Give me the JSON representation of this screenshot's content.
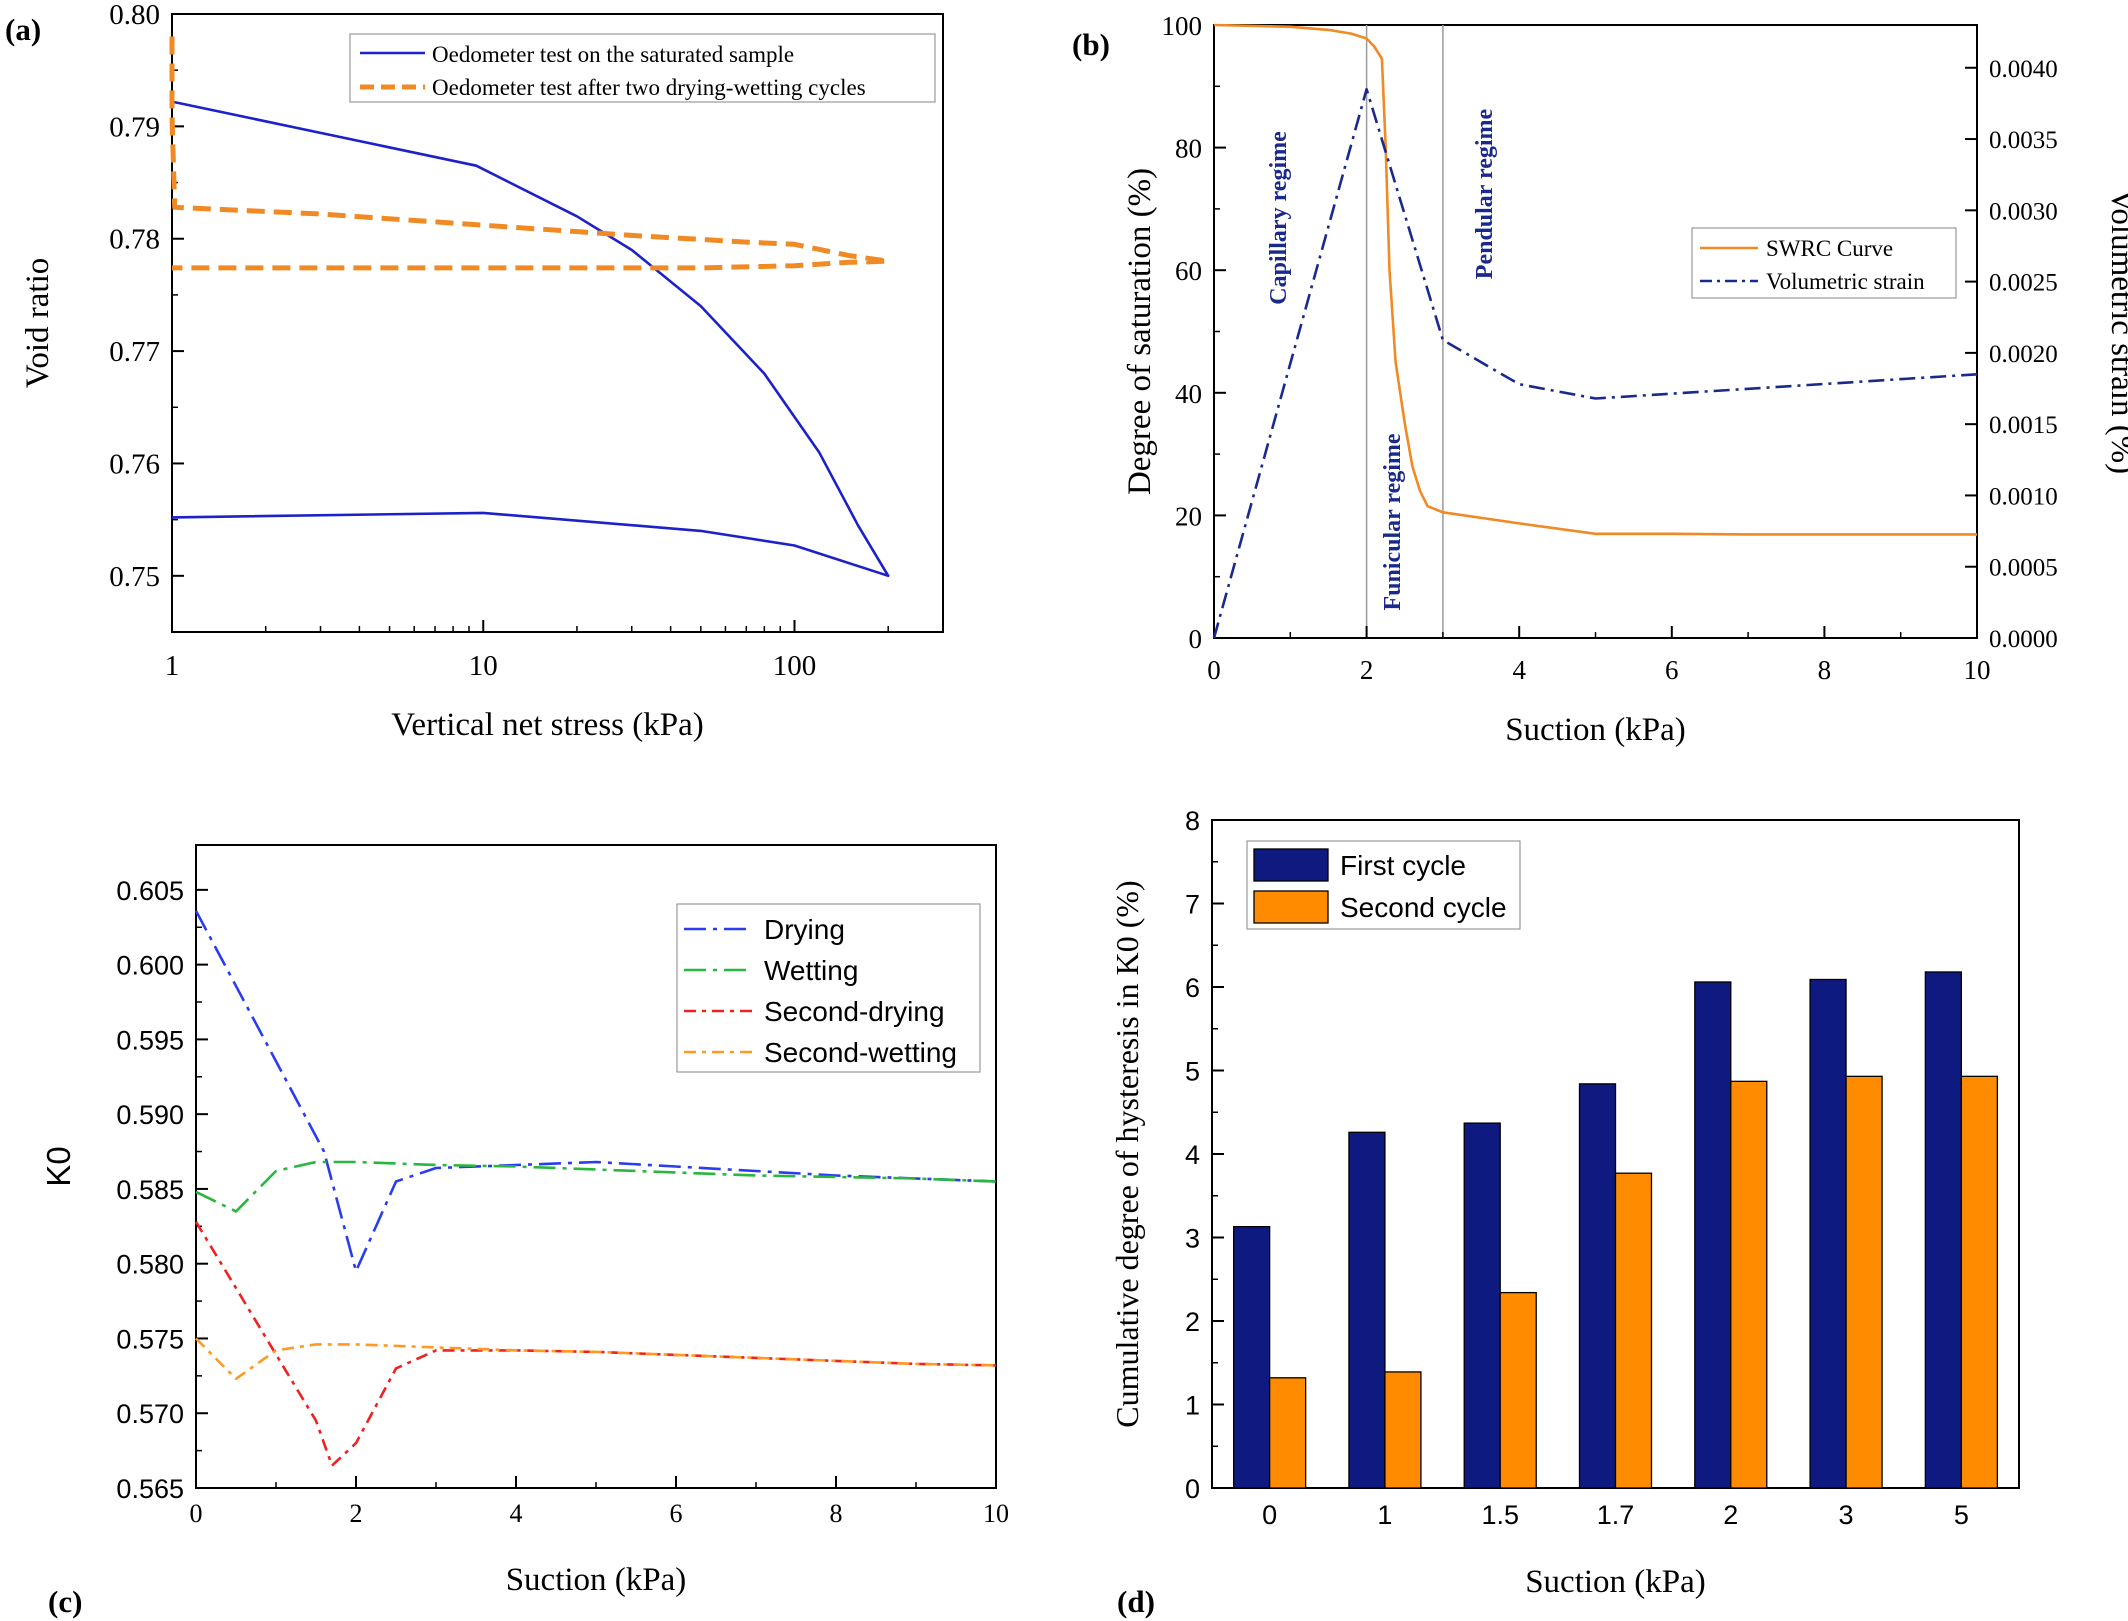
{
  "colors": {
    "blue_line": "#1c21c8",
    "orange": "#f08a24",
    "navy_text": "#1a2a8c",
    "drying": "#2a3cf0",
    "wetting": "#2bb640",
    "second_drying": "#ee2222",
    "second_wetting": "#ff9922",
    "bar_first": "#0e1a80",
    "bar_second": "#ff8c00",
    "vline": "#9a9a9a"
  },
  "chart_data": [
    {
      "panel_label": "(a)",
      "type": "line",
      "xscale": "log",
      "xlabel": "Vertical net stress (kPa)",
      "ylabel": "Void ratio",
      "xlim": [
        1,
        300
      ],
      "ylim": [
        0.745,
        0.8
      ],
      "xticks": [
        1,
        10,
        100
      ],
      "xtick_labels": [
        "1",
        "10",
        "100"
      ],
      "yticks": [
        0.75,
        0.76,
        0.77,
        0.78,
        0.79,
        0.8
      ],
      "ytick_labels": [
        "0.75",
        "0.76",
        "0.77",
        "0.78",
        "0.79",
        "0.80"
      ],
      "legend_position": "top-right",
      "series": [
        {
          "name": "Oedometer test on the saturated sample",
          "style": "solid",
          "color": "#1c21c8",
          "points": [
            [
              1,
              0.7922
            ],
            [
              9.5,
              0.7865
            ],
            [
              20,
              0.782
            ],
            [
              30,
              0.779
            ],
            [
              50,
              0.774
            ],
            [
              80,
              0.768
            ],
            [
              120,
              0.761
            ],
            [
              160,
              0.7545
            ],
            [
              200,
              0.75
            ],
            [
              100,
              0.7527
            ],
            [
              50,
              0.754
            ],
            [
              10,
              0.7556
            ],
            [
              1,
              0.7552
            ]
          ]
        },
        {
          "name": "Oedometer test after two drying-wetting cycles",
          "style": "dashed",
          "color": "#f08a24",
          "points": [
            [
              1,
              0.798
            ],
            [
              1,
              0.791
            ],
            [
              1.02,
              0.7828
            ],
            [
              3,
              0.7822
            ],
            [
              10,
              0.7812
            ],
            [
              30,
              0.7803
            ],
            [
              70,
              0.7797
            ],
            [
              100,
              0.7795
            ],
            [
              150,
              0.7785
            ],
            [
              200,
              0.778
            ],
            [
              150,
              0.7779
            ],
            [
              100,
              0.7776
            ],
            [
              50,
              0.7774
            ],
            [
              10,
              0.7774
            ],
            [
              1,
              0.7774
            ]
          ]
        }
      ]
    },
    {
      "panel_label": "(b)",
      "type": "line",
      "xlabel": "Suction (kPa)",
      "ylabel": "Degree of saturation (%)",
      "ylabel_right": "Volumetric strain (%)",
      "xlim": [
        0,
        10
      ],
      "ylim": [
        0,
        100
      ],
      "ylim_right": [
        0,
        0.0043
      ],
      "xticks": [
        0,
        2,
        4,
        6,
        8,
        10
      ],
      "xtick_labels": [
        "0",
        "2",
        "4",
        "6",
        "8",
        "10"
      ],
      "yticks": [
        0,
        20,
        40,
        60,
        80,
        100
      ],
      "ytick_labels": [
        "0",
        "20",
        "40",
        "60",
        "80",
        "100"
      ],
      "yticks_right": [
        0,
        0.0005,
        0.001,
        0.0015,
        0.002,
        0.0025,
        0.003,
        0.0035,
        0.004
      ],
      "ytick_labels_right": [
        "0.0000",
        "0.0005",
        "0.0010",
        "0.0015",
        "0.0020",
        "0.0025",
        "0.0030",
        "0.0035",
        "0.0040"
      ],
      "vertical_lines": [
        2,
        3
      ],
      "regime_labels": [
        "Capillary regime",
        "Funicular regime",
        "Pendular regime"
      ],
      "legend_position": "right",
      "series": [
        {
          "name": "SWRC Curve",
          "axis": "left",
          "style": "solid",
          "color": "#f08a24",
          "points": [
            [
              0,
              100
            ],
            [
              1,
              99.7
            ],
            [
              1.5,
              99.2
            ],
            [
              1.8,
              98.6
            ],
            [
              2,
              97.8
            ],
            [
              2.1,
              96.5
            ],
            [
              2.2,
              94.5
            ],
            [
              2.25,
              80
            ],
            [
              2.3,
              60
            ],
            [
              2.38,
              45
            ],
            [
              2.5,
              35
            ],
            [
              2.6,
              28
            ],
            [
              2.7,
              24
            ],
            [
              2.8,
              21.5
            ],
            [
              3,
              20.5
            ],
            [
              4,
              18.7
            ],
            [
              5,
              17
            ],
            [
              6,
              17
            ],
            [
              7,
              16.9
            ],
            [
              8,
              16.9
            ],
            [
              10,
              16.9
            ]
          ]
        },
        {
          "name": "Volumetric strain",
          "axis": "right",
          "style": "dashdot",
          "color": "#1a2a8c",
          "points": [
            [
              0,
              0
            ],
            [
              2,
              0.00385
            ],
            [
              3,
              0.00209
            ],
            [
              4,
              0.00178
            ],
            [
              5,
              0.00168
            ],
            [
              10,
              0.00185
            ]
          ]
        }
      ]
    },
    {
      "panel_label": "(c)",
      "type": "line",
      "xlabel": "Suction (kPa)",
      "ylabel": "K0",
      "xlim": [
        0,
        10
      ],
      "ylim": [
        0.565,
        0.608
      ],
      "xticks": [
        0,
        2,
        4,
        6,
        8,
        10
      ],
      "xtick_labels": [
        "0",
        "2",
        "4",
        "6",
        "8",
        "10"
      ],
      "yticks": [
        0.565,
        0.57,
        0.575,
        0.58,
        0.585,
        0.59,
        0.595,
        0.6,
        0.605
      ],
      "ytick_labels": [
        "0.565",
        "0.570",
        "0.575",
        "0.580",
        "0.585",
        "0.590",
        "0.595",
        "0.600",
        "0.605"
      ],
      "legend_position": "right",
      "series": [
        {
          "name": "Drying",
          "style": "dashdot",
          "color": "#2a3cf0",
          "points": [
            [
              0,
              0.6036
            ],
            [
              1.6,
              0.5875
            ],
            [
              2,
              0.5795
            ],
            [
              2.5,
              0.5855
            ],
            [
              3,
              0.5864
            ],
            [
              4,
              0.5866
            ],
            [
              5,
              0.5868
            ],
            [
              6,
              0.5865
            ],
            [
              7,
              0.5862
            ],
            [
              8,
              0.5859
            ],
            [
              9,
              0.5857
            ],
            [
              10,
              0.5855
            ]
          ]
        },
        {
          "name": "Wetting",
          "style": "dashdot",
          "color": "#2bb640",
          "points": [
            [
              0,
              0.5848
            ],
            [
              0.5,
              0.5835
            ],
            [
              1,
              0.5862
            ],
            [
              1.5,
              0.5868
            ],
            [
              2,
              0.5868
            ],
            [
              3,
              0.5866
            ],
            [
              4,
              0.5865
            ],
            [
              5,
              0.5863
            ],
            [
              6,
              0.5861
            ],
            [
              7,
              0.5859
            ],
            [
              8,
              0.5858
            ],
            [
              9,
              0.5857
            ],
            [
              10,
              0.5855
            ]
          ]
        },
        {
          "name": "Second-drying",
          "style": "dashdot",
          "color": "#ee2222",
          "points": [
            [
              0,
              0.5828
            ],
            [
              1.5,
              0.5695
            ],
            [
              1.7,
              0.5665
            ],
            [
              2,
              0.568
            ],
            [
              2.5,
              0.573
            ],
            [
              3,
              0.5742
            ],
            [
              4,
              0.5742
            ],
            [
              5,
              0.5741
            ],
            [
              6,
              0.5739
            ],
            [
              7,
              0.5737
            ],
            [
              8,
              0.5735
            ],
            [
              9,
              0.5733
            ],
            [
              10,
              0.5732
            ]
          ]
        },
        {
          "name": "Second-wetting",
          "style": "dashdot",
          "color": "#ff9922",
          "points": [
            [
              0,
              0.575
            ],
            [
              0.5,
              0.5723
            ],
            [
              1,
              0.5742
            ],
            [
              1.5,
              0.5746
            ],
            [
              2,
              0.5746
            ],
            [
              3,
              0.5744
            ],
            [
              4,
              0.5742
            ],
            [
              5,
              0.5741
            ],
            [
              6,
              0.5739
            ],
            [
              7,
              0.5737
            ],
            [
              8,
              0.5735
            ],
            [
              9,
              0.5733
            ],
            [
              10,
              0.5732
            ]
          ]
        }
      ]
    },
    {
      "panel_label": "(d)",
      "type": "bar",
      "xlabel": "Suction (kPa)",
      "ylabel": "Cumulative degree of hysteresis in K0  (%)",
      "ylim": [
        0,
        8
      ],
      "yticks": [
        0,
        1,
        2,
        3,
        4,
        5,
        6,
        7,
        8
      ],
      "ytick_labels": [
        "0",
        "1",
        "2",
        "3",
        "4",
        "5",
        "6",
        "7",
        "8"
      ],
      "categories": [
        "0",
        "1",
        "1.5",
        "1.7",
        "2",
        "3",
        "5"
      ],
      "legend_position": "top-left",
      "series": [
        {
          "name": "First cycle",
          "color": "#0e1a80",
          "values": [
            3.13,
            4.26,
            4.37,
            4.84,
            6.06,
            6.09,
            6.18
          ]
        },
        {
          "name": "Second cycle",
          "color": "#ff8c00",
          "values": [
            1.32,
            1.39,
            2.34,
            3.77,
            4.87,
            4.93,
            4.93
          ]
        }
      ]
    }
  ]
}
